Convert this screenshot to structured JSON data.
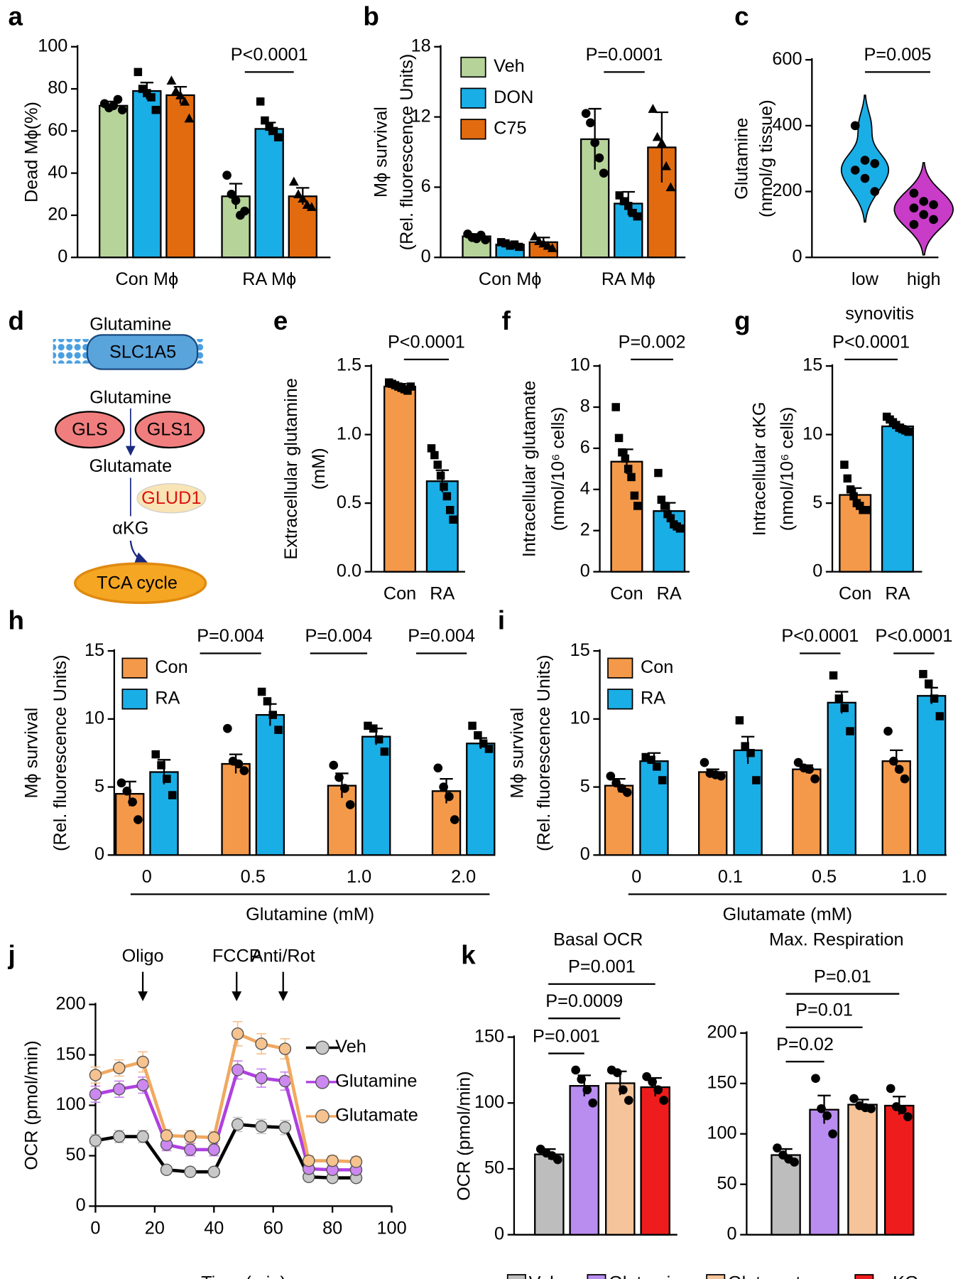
{
  "chart_data": [
    {
      "type": "bar",
      "panel": "a",
      "ylabel": "Dead Mϕ(%)",
      "categories": [
        "Con Mϕ",
        "RA Mϕ"
      ],
      "ylim": [
        0,
        100
      ],
      "yticks": [
        0,
        20,
        40,
        60,
        80,
        100
      ],
      "series": [
        {
          "color": "#b6d49a",
          "marker": "circle",
          "values": [
            72,
            29
          ],
          "errors": [
            2,
            6
          ],
          "points": [
            [
              73,
              71,
              72,
              75,
              70
            ],
            [
              39,
              30,
              27,
              20,
              22
            ]
          ]
        },
        {
          "color": "#1aaee6",
          "marker": "square",
          "values": [
            79,
            61
          ],
          "errors": [
            4,
            3
          ],
          "points": [
            [
              88,
              80,
              78,
              76,
              70
            ],
            [
              74,
              65,
              62,
              60,
              57
            ]
          ]
        },
        {
          "color": "#e26b10",
          "marker": "triangle",
          "values": [
            77,
            29
          ],
          "errors": [
            4,
            4
          ],
          "points": [
            [
              84,
              79,
              77,
              74,
              66
            ],
            [
              36,
              30,
              28,
              25,
              24
            ]
          ]
        }
      ],
      "annotations": [
        "P<0.0001"
      ]
    },
    {
      "type": "bar",
      "panel": "b",
      "ylabel": [
        "Mϕ survival",
        "(Rel. fluorescence Units)"
      ],
      "categories": [
        "Con Mϕ",
        "RA Mϕ"
      ],
      "ylim": [
        0,
        18
      ],
      "yticks": [
        0,
        6,
        12,
        18
      ],
      "legend": "upper left",
      "series": [
        {
          "name": "Veh",
          "color": "#b6d49a",
          "marker": "circle",
          "values": [
            1.8,
            10.1
          ],
          "errors": [
            0.2,
            2.6
          ],
          "points": [
            [
              2.0,
              1.7,
              1.6,
              1.9,
              1.5
            ],
            [
              12.3,
              11.5,
              9.8,
              8.5,
              7.2
            ]
          ]
        },
        {
          "name": "DON",
          "color": "#1aaee6",
          "marker": "square",
          "values": [
            1.1,
            4.6
          ],
          "errors": [
            0.2,
            1.0
          ],
          "points": [
            [
              1.3,
              1.2,
              1.0,
              1.1,
              0.9
            ],
            [
              5.3,
              4.8,
              4.4,
              3.8,
              3.5
            ]
          ]
        },
        {
          "name": "C75",
          "color": "#e26b10",
          "marker": "triangle",
          "values": [
            1.3,
            9.4
          ],
          "errors": [
            0.4,
            3.0
          ],
          "points": [
            [
              1.8,
              1.4,
              1.2,
              1.0,
              0.8
            ],
            [
              12.7,
              10.3,
              9.8,
              7.8,
              6.0
            ]
          ]
        }
      ],
      "annotations": [
        "P=0.0001"
      ]
    },
    {
      "type": "violin",
      "panel": "c",
      "ylabel": [
        "Glutamine",
        "(nmol/g tissue)"
      ],
      "xlabel": "synovitis",
      "categories": [
        "low",
        "high"
      ],
      "colors": [
        "#1aaee6",
        "#c83cc8"
      ],
      "ylim": [
        0,
        600
      ],
      "yticks": [
        0,
        200,
        400,
        600
      ],
      "points": [
        [
          400,
          295,
          285,
          265,
          240,
          200
        ],
        [
          195,
          170,
          160,
          150,
          130,
          115,
          100
        ]
      ],
      "annotations": [
        "P=0.005"
      ]
    },
    {
      "type": "bar",
      "panel": "e",
      "ylabel": [
        "Extracellular glutamine",
        "(mM)"
      ],
      "categories": [
        "Con",
        "RA"
      ],
      "colors": [
        "#f4994a",
        "#1aaee6"
      ],
      "marker": "square",
      "ylim": [
        0,
        1.5
      ],
      "yticks": [
        {
          "value": 0,
          "label": "0.0"
        },
        0.5,
        {
          "value": 1,
          "label": "1.0"
        },
        1.5
      ],
      "values": [
        1.35,
        0.66
      ],
      "errors": [
        0.02,
        0.08
      ],
      "points": [
        [
          1.38,
          1.37,
          1.36,
          1.35,
          1.34,
          1.33,
          1.32,
          1.35
        ],
        [
          0.9,
          0.85,
          0.78,
          0.7,
          0.62,
          0.55,
          0.45,
          0.38
        ]
      ],
      "annotations": [
        "P<0.0001"
      ]
    },
    {
      "type": "bar",
      "panel": "f",
      "ylabel": [
        "Intracellular glutamate",
        "(nmol/10⁶ cells)"
      ],
      "categories": [
        "Con",
        "RA"
      ],
      "colors": [
        "#f4994a",
        "#1aaee6"
      ],
      "marker": "square",
      "ylim": [
        0,
        10
      ],
      "yticks": [
        0,
        2,
        4,
        6,
        8,
        10
      ],
      "values": [
        5.35,
        2.95
      ],
      "errors": [
        0.6,
        0.4
      ],
      "points": [
        [
          8.0,
          6.5,
          5.8,
          5.5,
          5.0,
          4.6,
          3.7,
          3.2
        ],
        [
          4.8,
          3.5,
          3.2,
          2.8,
          2.6,
          2.3,
          2.2,
          2.1
        ]
      ],
      "annotations": [
        "P=0.002"
      ]
    },
    {
      "type": "bar",
      "panel": "g",
      "ylabel": [
        "Intracellular αKG",
        "(nmol/10⁶ cells)"
      ],
      "categories": [
        "Con",
        "RA"
      ],
      "colors": [
        "#f4994a",
        "#1aaee6"
      ],
      "marker": "square",
      "ylim": [
        0,
        15
      ],
      "yticks": [
        0,
        5,
        10,
        15
      ],
      "values": [
        5.6,
        10.6
      ],
      "errors": [
        0.5,
        0.15
      ],
      "points": [
        [
          7.8,
          6.8,
          6.0,
          5.5,
          5.0,
          4.8,
          4.5,
          4.5
        ],
        [
          11.3,
          11.1,
          10.9,
          10.7,
          10.5,
          10.4,
          10.3,
          10.2
        ]
      ],
      "annotations": [
        "P<0.0001"
      ]
    },
    {
      "type": "bar",
      "panel": "h",
      "ylabel": [
        "Mϕ survival",
        "(Rel. fluorescence Units)"
      ],
      "xlabel": "Glutamine (mM)",
      "categories": [
        "0",
        "0.5",
        "1.0",
        "2.0"
      ],
      "ylim": [
        0,
        15
      ],
      "yticks": [
        0,
        5,
        10,
        15
      ],
      "legend": "upper left",
      "series": [
        {
          "name": "Con",
          "color": "#f4994a",
          "marker": "circle",
          "values": [
            4.5,
            6.7,
            5.1,
            4.7
          ],
          "errors": [
            0.9,
            0.7,
            0.9,
            0.9
          ],
          "points": [
            [
              5.3,
              4.7,
              3.9,
              2.6
            ],
            [
              9.3,
              6.9,
              6.7,
              6.2
            ],
            [
              6.6,
              5.7,
              4.9,
              3.7
            ],
            [
              6.4,
              5.0,
              4.3,
              2.6
            ]
          ]
        },
        {
          "name": "RA",
          "color": "#1aaee6",
          "marker": "square",
          "values": [
            6.1,
            10.3,
            8.7,
            8.2
          ],
          "errors": [
            0.9,
            0.8,
            0.6,
            0.4
          ],
          "points": [
            [
              7.4,
              6.6,
              5.6,
              4.4
            ],
            [
              12.0,
              11.3,
              10.3,
              9.2
            ],
            [
              9.5,
              9.3,
              8.5,
              7.6
            ],
            [
              9.5,
              8.8,
              8.2,
              7.8
            ]
          ]
        }
      ],
      "annotations": [
        "P=0.004",
        "P=0.004",
        "P=0.004"
      ]
    },
    {
      "type": "bar",
      "panel": "i",
      "ylabel": [
        "Mϕ survival",
        "(Rel. fluorescence Units)"
      ],
      "xlabel": "Glutamate (mM)",
      "categories": [
        "0",
        "0.1",
        "0.5",
        "1.0"
      ],
      "ylim": [
        0,
        15
      ],
      "yticks": [
        0,
        5,
        10,
        15
      ],
      "legend": "upper left",
      "series": [
        {
          "name": "Con",
          "color": "#f4994a",
          "marker": "circle",
          "values": [
            5.1,
            6.1,
            6.3,
            6.9
          ],
          "errors": [
            0.5,
            0.2,
            0.3,
            0.8
          ],
          "points": [
            [
              5.8,
              5.3,
              4.9,
              4.6
            ],
            [
              6.8,
              6.0,
              5.9,
              5.8
            ],
            [
              6.8,
              6.4,
              6.3,
              5.6
            ],
            [
              9.1,
              6.9,
              6.3,
              5.6
            ]
          ]
        },
        {
          "name": "RA",
          "color": "#1aaee6",
          "marker": "square",
          "values": [
            6.9,
            7.7,
            11.2,
            11.7
          ],
          "errors": [
            0.6,
            1.0,
            0.8,
            0.6
          ],
          "points": [
            [
              7.2,
              7.0,
              6.5,
              5.5
            ],
            [
              9.9,
              8.0,
              7.5,
              5.5
            ],
            [
              13.2,
              11.5,
              10.8,
              9.1
            ],
            [
              13.3,
              12.6,
              11.5,
              10.2
            ]
          ]
        }
      ],
      "annotations": [
        "P<0.0001",
        "P<0.0001"
      ]
    },
    {
      "type": "line",
      "panel": "j",
      "ylabel": "OCR (pmol/min)",
      "xlabel": "Time (min)",
      "xlim": [
        0,
        100
      ],
      "xticks": [
        0,
        20,
        40,
        60,
        80,
        100
      ],
      "ylim": [
        0,
        200
      ],
      "yticks": [
        0,
        50,
        100,
        150,
        200
      ],
      "legend": "right",
      "x": [
        0,
        8,
        16,
        24,
        32,
        40,
        48,
        56,
        64,
        72,
        80,
        88
      ],
      "series": [
        {
          "name": "Veh",
          "color": "#c8c8c8",
          "line_color": "#000000",
          "values": [
            65,
            69,
            69,
            36,
            34,
            34,
            81,
            79,
            78,
            29,
            28,
            28
          ],
          "errors": [
            6,
            6,
            6,
            3,
            3,
            3,
            7,
            7,
            7,
            3,
            3,
            3
          ]
        },
        {
          "name": "Glutamine",
          "color": "#cc88f0",
          "line_color": "#b040e0",
          "values": [
            111,
            116,
            120,
            61,
            56,
            56,
            135,
            127,
            124,
            37,
            36,
            36
          ],
          "errors": [
            8,
            8,
            8,
            6,
            6,
            6,
            9,
            9,
            9,
            4,
            4,
            4
          ]
        },
        {
          "name": "Glutamate",
          "color": "#f6c38f",
          "line_color": "#f0a860",
          "values": [
            130,
            137,
            143,
            70,
            69,
            68,
            171,
            161,
            156,
            45,
            45,
            44
          ],
          "errors": [
            8,
            8,
            10,
            6,
            6,
            6,
            12,
            10,
            10,
            5,
            5,
            5
          ]
        }
      ],
      "annotations": [
        "Oligo",
        "FCCP",
        "Anti/Rot"
      ]
    },
    {
      "type": "bar",
      "panel": "k",
      "title": "Basal OCR",
      "ylabel": "OCR (pmol/min)",
      "categories": [
        "Veh",
        "Glutamine",
        "Glutamate",
        "α-KG"
      ],
      "legend": "bottom",
      "colors": [
        "#bdbdbd",
        "#b98cf0",
        "#f6c49a",
        "#ee1c1c"
      ],
      "marker": "circle",
      "ylim": [
        0,
        150
      ],
      "yticks": [
        0,
        50,
        100,
        150
      ],
      "values": [
        61,
        113,
        115,
        112
      ],
      "errors": [
        4,
        8,
        9,
        7
      ],
      "points": [
        [
          65,
          62,
          60,
          57
        ],
        [
          125,
          118,
          110,
          100
        ],
        [
          125,
          123,
          110,
          102
        ],
        [
          120,
          116,
          110,
          102
        ]
      ],
      "annotations": [
        "P=0.001",
        "P=0.0009",
        "P=0.001"
      ]
    },
    {
      "type": "bar",
      "title": "Max. Respiration",
      "colors": [
        "#bdbdbd",
        "#b98cf0",
        "#f6c49a",
        "#ee1c1c"
      ],
      "marker": "circle",
      "ylim": [
        0,
        200
      ],
      "yticks": [
        0,
        50,
        100,
        150,
        200
      ],
      "values": [
        79,
        124,
        129,
        128
      ],
      "errors": [
        6,
        14,
        5,
        9
      ],
      "points": [
        [
          86,
          79,
          75,
          72
        ],
        [
          155,
          125,
          118,
          100
        ],
        [
          135,
          128,
          126,
          125
        ],
        [
          145,
          127,
          124,
          117
        ]
      ],
      "annotations": [
        "P=0.01",
        "P=0.01",
        "P=0.02"
      ]
    }
  ],
  "diagram": {
    "panel": "d",
    "labels": [
      "Glutamine",
      "SLC1A5",
      "Glutamine",
      "GLS",
      "GLS1",
      "Glutamate",
      "GLUD1",
      "αKG",
      "TCA cycle"
    ]
  }
}
